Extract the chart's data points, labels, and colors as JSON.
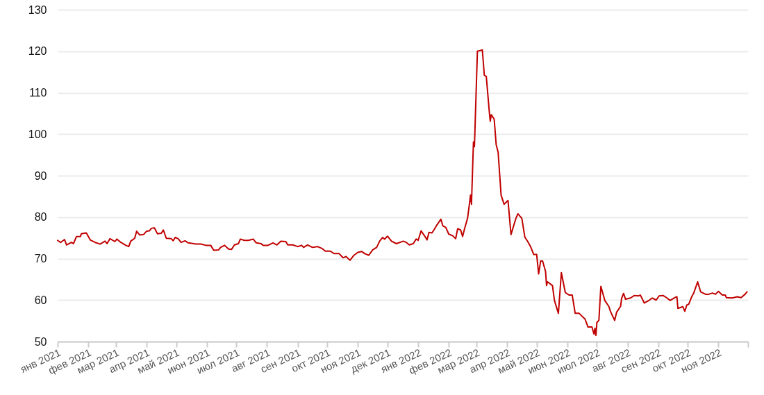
{
  "chart_data": {
    "type": "line",
    "x": [
      "2021-01-01",
      "2021-01-04",
      "2021-01-08",
      "2021-01-10",
      "2021-01-15",
      "2021-01-17",
      "2021-01-20",
      "2021-01-24",
      "2021-01-25",
      "2021-01-30",
      "2021-02-03",
      "2021-02-08",
      "2021-02-13",
      "2021-02-18",
      "2021-02-20",
      "2021-02-23",
      "2021-02-28",
      "2021-03-02",
      "2021-03-06",
      "2021-03-11",
      "2021-03-14",
      "2021-03-16",
      "2021-03-20",
      "2021-03-22",
      "2021-03-25",
      "2021-03-29",
      "2021-04-01",
      "2021-04-04",
      "2021-04-06",
      "2021-04-09",
      "2021-04-12",
      "2021-04-16",
      "2021-04-18",
      "2021-04-21",
      "2021-04-26",
      "2021-04-28",
      "2021-04-30",
      "2021-05-03",
      "2021-05-06",
      "2021-05-10",
      "2021-05-13",
      "2021-05-21",
      "2021-05-26",
      "2021-05-31",
      "2021-06-05",
      "2021-06-08",
      "2021-06-13",
      "2021-06-15",
      "2021-06-19",
      "2021-06-23",
      "2021-06-26",
      "2021-06-29",
      "2021-07-03",
      "2021-07-05",
      "2021-07-09",
      "2021-07-13",
      "2021-07-18",
      "2021-07-21",
      "2021-07-26",
      "2021-07-28",
      "2021-08-02",
      "2021-08-07",
      "2021-08-11",
      "2021-08-15",
      "2021-08-20",
      "2021-08-22",
      "2021-08-27",
      "2021-09-01",
      "2021-09-05",
      "2021-09-07",
      "2021-09-11",
      "2021-09-16",
      "2021-09-21",
      "2021-09-26",
      "2021-09-29",
      "2021-10-04",
      "2021-10-08",
      "2021-10-13",
      "2021-10-17",
      "2021-10-20",
      "2021-10-24",
      "2021-10-28",
      "2021-11-01",
      "2021-11-05",
      "2021-11-08",
      "2021-11-12",
      "2021-11-16",
      "2021-11-20",
      "2021-11-23",
      "2021-11-26",
      "2021-11-28",
      "2021-12-01",
      "2021-12-05",
      "2021-12-10",
      "2021-12-17",
      "2021-12-20",
      "2021-12-23",
      "2021-12-27",
      "2021-12-30",
      "2022-01-01",
      "2022-01-04",
      "2022-01-08",
      "2022-01-10",
      "2022-01-12",
      "2022-01-15",
      "2022-01-17",
      "2022-01-20",
      "2022-01-24",
      "2022-01-26",
      "2022-01-29",
      "2022-02-01",
      "2022-02-05",
      "2022-02-08",
      "2022-02-10",
      "2022-02-13",
      "2022-02-15",
      "2022-02-17",
      "2022-02-20",
      "2022-02-22",
      "2022-02-23",
      "2022-02-24",
      "2022-02-26",
      "2022-02-27",
      "2022-03-02",
      "2022-03-07",
      "2022-03-09",
      "2022-03-11",
      "2022-03-14",
      "2022-03-15",
      "2022-03-16",
      "2022-03-19",
      "2022-03-21",
      "2022-03-23",
      "2022-03-26",
      "2022-03-29",
      "2022-04-02",
      "2022-04-05",
      "2022-04-10",
      "2022-04-12",
      "2022-04-16",
      "2022-04-19",
      "2022-04-22",
      "2022-04-25",
      "2022-04-28",
      "2022-05-01",
      "2022-05-03",
      "2022-05-05",
      "2022-05-07",
      "2022-05-10",
      "2022-05-11",
      "2022-05-12",
      "2022-05-17",
      "2022-05-19",
      "2022-05-23",
      "2022-05-26",
      "2022-05-30",
      "2022-06-03",
      "2022-06-06",
      "2022-06-09",
      "2022-06-13",
      "2022-06-19",
      "2022-06-22",
      "2022-06-26",
      "2022-06-28",
      "2022-06-29",
      "2022-06-30",
      "2022-07-01",
      "2022-07-03",
      "2022-07-05",
      "2022-07-09",
      "2022-07-13",
      "2022-07-15",
      "2022-07-19",
      "2022-07-21",
      "2022-07-25",
      "2022-07-26",
      "2022-07-28",
      "2022-07-30",
      "2022-08-04",
      "2022-08-08",
      "2022-08-12",
      "2022-08-14",
      "2022-08-18",
      "2022-08-22",
      "2022-08-26",
      "2022-08-30",
      "2022-09-02",
      "2022-09-06",
      "2022-09-10",
      "2022-09-13",
      "2022-09-18",
      "2022-09-20",
      "2022-09-21",
      "2022-09-26",
      "2022-09-28",
      "2022-09-30",
      "2022-10-02",
      "2022-10-05",
      "2022-10-07",
      "2022-10-11",
      "2022-10-14",
      "2022-10-19",
      "2022-10-22",
      "2022-10-26",
      "2022-10-29",
      "2022-11-01",
      "2022-11-05",
      "2022-11-08",
      "2022-11-09",
      "2022-11-15",
      "2022-11-20",
      "2022-11-24",
      "2022-11-28",
      "2022-11-30"
    ],
    "series": [
      {
        "color": "#c00000",
        "values": [
          74.4,
          73.9,
          74.6,
          73.3,
          73.9,
          73.6,
          75.3,
          75.3,
          76.0,
          76.2,
          74.5,
          73.9,
          73.5,
          74.2,
          73.6,
          74.8,
          74.1,
          74.7,
          73.9,
          73.2,
          72.9,
          74.2,
          74.9,
          76.6,
          75.7,
          75.8,
          76.6,
          76.7,
          77.3,
          77.4,
          76.0,
          76.1,
          76.9,
          74.9,
          74.8,
          74.3,
          75.1,
          74.8,
          73.9,
          74.3,
          73.8,
          73.5,
          73.5,
          73.2,
          73.2,
          72.0,
          72.1,
          72.7,
          73.2,
          72.3,
          72.2,
          73.3,
          73.6,
          74.7,
          74.4,
          74.4,
          74.7,
          73.8,
          73.6,
          73.2,
          73.2,
          73.8,
          73.3,
          74.2,
          74.1,
          73.3,
          73.3,
          72.9,
          73.2,
          72.7,
          73.3,
          72.7,
          72.9,
          72.4,
          71.8,
          71.8,
          71.2,
          71.2,
          70.2,
          70.5,
          69.6,
          70.8,
          71.5,
          71.7,
          71.2,
          70.8,
          72.1,
          72.7,
          74.2,
          75.1,
          74.7,
          75.4,
          74.2,
          73.6,
          74.2,
          73.9,
          73.3,
          73.6,
          74.7,
          74.4,
          76.7,
          75.3,
          74.5,
          76.3,
          76.2,
          76.9,
          78.1,
          79.5,
          77.9,
          77.5,
          75.9,
          75.5,
          74.8,
          77.2,
          76.9,
          75.3,
          77.2,
          79.7,
          83.3,
          85.3,
          83.1,
          98.1,
          97.0,
          120.0,
          120.3,
          114.2,
          113.9,
          105.5,
          103.1,
          104.7,
          103.6,
          97.5,
          95.6,
          85.3,
          83.1,
          84.0,
          75.8,
          79.7,
          80.8,
          79.7,
          75.2,
          74.1,
          72.8,
          71.0,
          71.0,
          66.3,
          69.4,
          69.4,
          66.9,
          63.5,
          64.4,
          63.5,
          59.9,
          56.8,
          66.6,
          61.8,
          61.2,
          61.2,
          56.8,
          56.8,
          55.4,
          53.5,
          53.5,
          51.8,
          53.2,
          51.5,
          54.6,
          55.1,
          63.3,
          59.9,
          58.5,
          57.1,
          55.1,
          57.1,
          58.5,
          60.4,
          61.6,
          60.2,
          60.5,
          61.1,
          61.0,
          61.2,
          59.3,
          59.8,
          60.5,
          60.0,
          61.0,
          61.1,
          60.5,
          59.9,
          60.6,
          60.8,
          58.0,
          58.4,
          57.3,
          58.8,
          59.0,
          60.8,
          61.7,
          64.4,
          62.0,
          61.4,
          61.4,
          61.7,
          61.4,
          62.1,
          61.2,
          61.2,
          60.6,
          60.5,
          60.8,
          60.6,
          61.4,
          62.0
        ]
      }
    ],
    "xlim": [
      "2021-01-01",
      "2022-12-01"
    ],
    "xticks": [
      {
        "value": "2021-01-01",
        "label": "янв 2021"
      },
      {
        "value": "2021-02-01",
        "label": "фев 2021"
      },
      {
        "value": "2021-03-01",
        "label": "мар 2021"
      },
      {
        "value": "2021-04-01",
        "label": "апр 2021"
      },
      {
        "value": "2021-05-01",
        "label": "май 2021"
      },
      {
        "value": "2021-06-01",
        "label": "июн 2021"
      },
      {
        "value": "2021-07-01",
        "label": "июл 2021"
      },
      {
        "value": "2021-08-01",
        "label": "авг 2021"
      },
      {
        "value": "2021-09-01",
        "label": "сен 2021"
      },
      {
        "value": "2021-10-01",
        "label": "окт 2021"
      },
      {
        "value": "2021-11-01",
        "label": "ноя 2021"
      },
      {
        "value": "2021-12-01",
        "label": "дек 2021"
      },
      {
        "value": "2022-01-01",
        "label": "янв 2022"
      },
      {
        "value": "2022-02-01",
        "label": "фев 2022"
      },
      {
        "value": "2022-03-01",
        "label": "мар 2022"
      },
      {
        "value": "2022-04-01",
        "label": "апр 2022"
      },
      {
        "value": "2022-05-01",
        "label": "май 2022"
      },
      {
        "value": "2022-06-01",
        "label": "июн 2022"
      },
      {
        "value": "2022-07-01",
        "label": "июл 2022"
      },
      {
        "value": "2022-08-01",
        "label": "авг 2022"
      },
      {
        "value": "2022-09-01",
        "label": "сен 2022"
      },
      {
        "value": "2022-10-01",
        "label": "окт 2022"
      },
      {
        "value": "2022-11-01",
        "label": "ноя 2022"
      },
      {
        "value": "2022-12-01",
        "label": null
      }
    ],
    "ylim": [
      50,
      130
    ],
    "yticks": [
      50,
      60,
      70,
      80,
      90,
      100,
      110,
      120,
      130
    ],
    "grid": "y"
  }
}
